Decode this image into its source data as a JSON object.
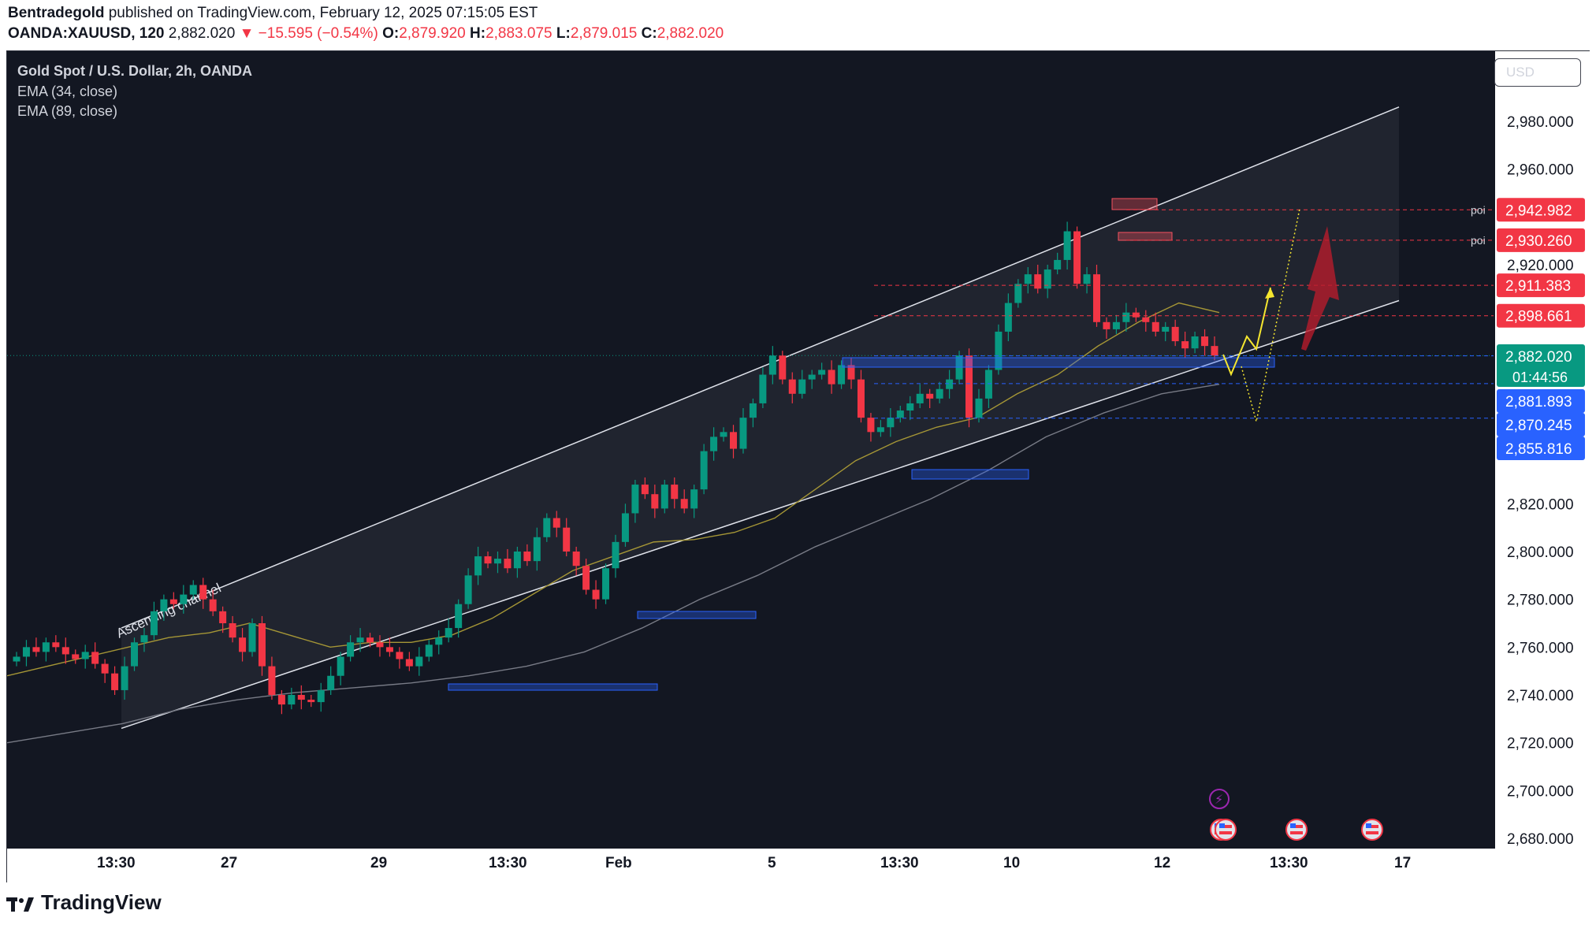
{
  "header": {
    "author": "Bentradegold",
    "published": "published on TradingView.com, February 12, 2025 07:15:05 EST",
    "symbol": "OANDA:XAUUSD, 120",
    "last": "2,882.020",
    "change": "−15.595 (−0.54%)",
    "open_label": "O:",
    "open": "2,879.920",
    "high_label": "H:",
    "high": "2,883.075",
    "low_label": "L:",
    "low": "2,879.015",
    "close_label": "C:",
    "close": "2,882.020"
  },
  "legend": {
    "title": "Gold Spot / U.S. Dollar, 2h, OANDA",
    "ema1": "EMA (34, close)",
    "ema2": "EMA (89, close)"
  },
  "currency": "USD",
  "footer": {
    "brand": "TradingView"
  },
  "colors": {
    "bg": "#131722",
    "up": "#089981",
    "down": "#f23645",
    "ema34": "#a59636",
    "ema89": "#787b86",
    "zone": "#2962ff",
    "poi": "#f23645",
    "arrow": "#b71c2c",
    "path": "#f5e62f"
  },
  "chart_data": {
    "type": "candlestick",
    "title": "Gold Spot / U.S. Dollar, 2h, OANDA",
    "ylim": [
      2670,
      2995
    ],
    "y_ticks": [
      2680,
      2700,
      2720,
      2740,
      2760,
      2780,
      2800,
      2820,
      2840,
      2860,
      2880,
      2900,
      2920,
      2940,
      2960,
      2980
    ],
    "y_tick_labels": [
      "2,680.000",
      "2,700.000",
      "2,720.000",
      "2,740.000",
      "2,760.000",
      "2,780.000",
      "2,800.000",
      "2,820.000",
      "",
      "",
      "",
      "",
      "2,920.000",
      "",
      "2,960.000",
      "2,980.000"
    ],
    "x_labels": [
      "13:30",
      "27",
      "29",
      "13:30",
      "Feb",
      "5",
      "13:30",
      "10",
      "12",
      "13:30",
      "17"
    ],
    "closes": [
      2756,
      2760,
      2758,
      2762,
      2760,
      2757,
      2755,
      2758,
      2753,
      2749,
      2742,
      2752,
      2762,
      2765,
      2775,
      2780,
      2778,
      2782,
      2786,
      2780,
      2775,
      2770,
      2764,
      2758,
      2770,
      2752,
      2740,
      2736,
      2740,
      2738,
      2737,
      2742,
      2748,
      2756,
      2762,
      2764,
      2762,
      2760,
      2758,
      2755,
      2752,
      2756,
      2761,
      2764,
      2768,
      2778,
      2790,
      2798,
      2795,
      2797,
      2793,
      2800,
      2796,
      2806,
      2814,
      2810,
      2800,
      2794,
      2784,
      2780,
      2793,
      2804,
      2816,
      2828,
      2824,
      2818,
      2828,
      2822,
      2818,
      2826,
      2842,
      2848,
      2850,
      2843,
      2856,
      2862,
      2874,
      2882,
      2872,
      2866,
      2872,
      2874,
      2876,
      2870,
      2878,
      2872,
      2856,
      2850,
      2852,
      2856,
      2859,
      2862,
      2866,
      2864,
      2868,
      2872,
      2882,
      2856,
      2864,
      2876,
      2892,
      2904,
      2912,
      2916,
      2910,
      2918,
      2922,
      2934,
      2912,
      2916,
      2896,
      2893,
      2896,
      2900,
      2898,
      2896,
      2892,
      2894,
      2888,
      2885,
      2890,
      2886,
      2882
    ],
    "ema34": [
      2748,
      2752,
      2756,
      2760,
      2764,
      2766,
      2770,
      2765,
      2760,
      2762,
      2762,
      2765,
      2772,
      2782,
      2792,
      2798,
      2804,
      2805,
      2808,
      2814,
      2826,
      2838,
      2846,
      2852,
      2856,
      2866,
      2874,
      2886,
      2896,
      2904,
      2900
    ],
    "ema89": [
      2720,
      2724,
      2728,
      2734,
      2738,
      2741,
      2743,
      2745,
      2748,
      2752,
      2758,
      2768,
      2780,
      2790,
      2802,
      2812,
      2822,
      2834,
      2848,
      2858,
      2866,
      2870
    ],
    "channel": {
      "lower": [
        [
          0,
          2726
        ],
        [
          1,
          2905
        ]
      ],
      "upper": [
        [
          0,
          2768
        ],
        [
          1,
          2986
        ]
      ]
    },
    "levels": [
      {
        "label": "2,942.982",
        "value": 2942.982,
        "type": "poi",
        "note": "poi"
      },
      {
        "label": "2,930.260",
        "value": 2930.26,
        "type": "poi",
        "note": "poi"
      },
      {
        "label": "2,911.383",
        "value": 2911.383,
        "type": "resistance",
        "note": ""
      },
      {
        "label": "2,898.661",
        "value": 2898.661,
        "type": "resistance",
        "note": ""
      },
      {
        "label": "2,882.020",
        "value": 2882.02,
        "type": "last",
        "note": "01:44:56"
      },
      {
        "label": "2,881.893",
        "value": 2881.893,
        "type": "support",
        "note": ""
      },
      {
        "label": "2,870.245",
        "value": 2870.245,
        "type": "support",
        "note": ""
      },
      {
        "label": "2,855.816",
        "value": 2855.816,
        "type": "support",
        "note": ""
      }
    ],
    "annotations": [
      "Ascending channel",
      "poi",
      "poi"
    ]
  }
}
